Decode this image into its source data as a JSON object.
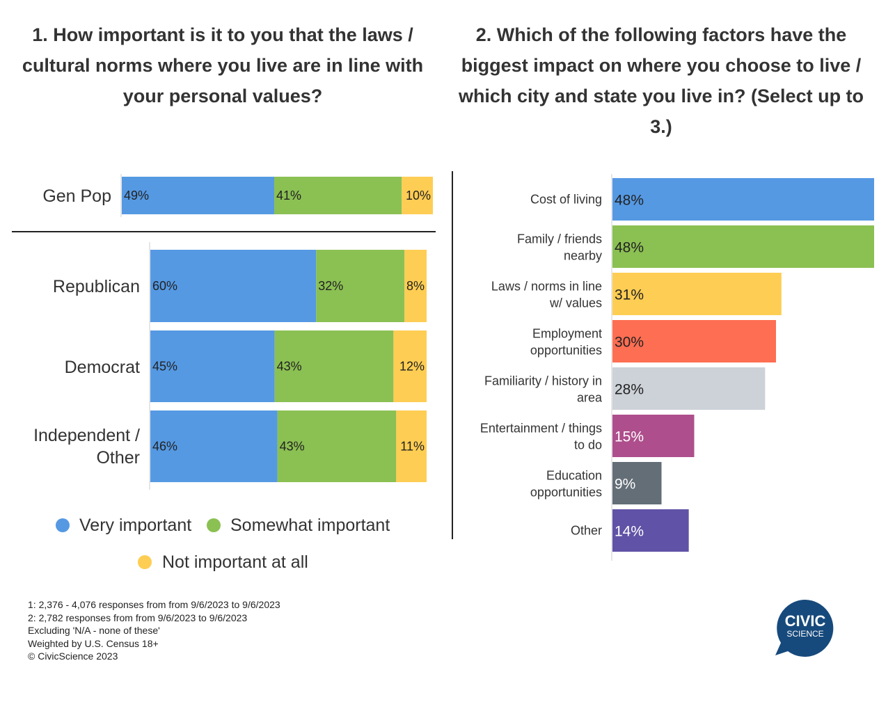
{
  "titles": {
    "q1": "1. How important is it to you that the laws / cultural norms where you live are in line with your personal values?",
    "q2": "2. Which of the following factors have the biggest impact on where you choose to live / which city and state you live in? (Select up to 3.)"
  },
  "chart_data": [
    {
      "type": "bar",
      "orientation": "horizontal",
      "stacked": true,
      "normalized": true,
      "categories": [
        "Gen Pop",
        "Republican",
        "Democrat",
        "Independent / Other"
      ],
      "series": [
        {
          "name": "Very important",
          "values": [
            49,
            60,
            45,
            46
          ],
          "labels": [
            "49%",
            "60%",
            "45%",
            "46%"
          ],
          "color": "#5599e3"
        },
        {
          "name": "Somewhat important",
          "values": [
            41,
            32,
            43,
            43
          ],
          "labels": [
            "41%",
            "32%",
            "43%",
            "43%"
          ],
          "color": "#8bc053"
        },
        {
          "name": "Not important at all",
          "values": [
            10,
            8,
            12,
            11
          ],
          "labels": [
            "10%",
            "8%",
            "12%",
            "11%"
          ],
          "color": "#fecd53"
        }
      ],
      "legend": "bottom"
    },
    {
      "type": "bar",
      "orientation": "horizontal",
      "categories": [
        "Cost of living",
        "Family / friends nearby",
        "Laws / norms in line w/ values",
        "Employment opportunities",
        "Familiarity / history in area",
        "Entertainment / things to do",
        "Education opportunities",
        "Other"
      ],
      "values": [
        48,
        48,
        31,
        30,
        28,
        15,
        9,
        14
      ],
      "labels": [
        "48%",
        "48%",
        "31%",
        "30%",
        "28%",
        "15%",
        "9%",
        "14%"
      ],
      "colors": [
        "#5599e3",
        "#8bc053",
        "#fecd53",
        "#fe6e52",
        "#cdd1d8",
        "#ae4e8c",
        "#636e77",
        "#6052a6"
      ],
      "label_colors": [
        "#222222",
        "#222222",
        "#222222",
        "#222222",
        "#222222",
        "#ffffff",
        "#ffffff",
        "#ffffff"
      ]
    }
  ],
  "footnotes": [
    "1: 2,376 -  4,076 responses from from 9/6/2023 to 9/6/2023",
    "2: 2,782 responses from from 9/6/2023 to 9/6/2023",
    "Excluding 'N/A - none of these'",
    "Weighted by U.S. Census 18+",
    "© CivicScience 2023"
  ],
  "logo": {
    "line1": "CIVIC",
    "line2": "SCIENCE",
    "color": "#174a7c"
  }
}
